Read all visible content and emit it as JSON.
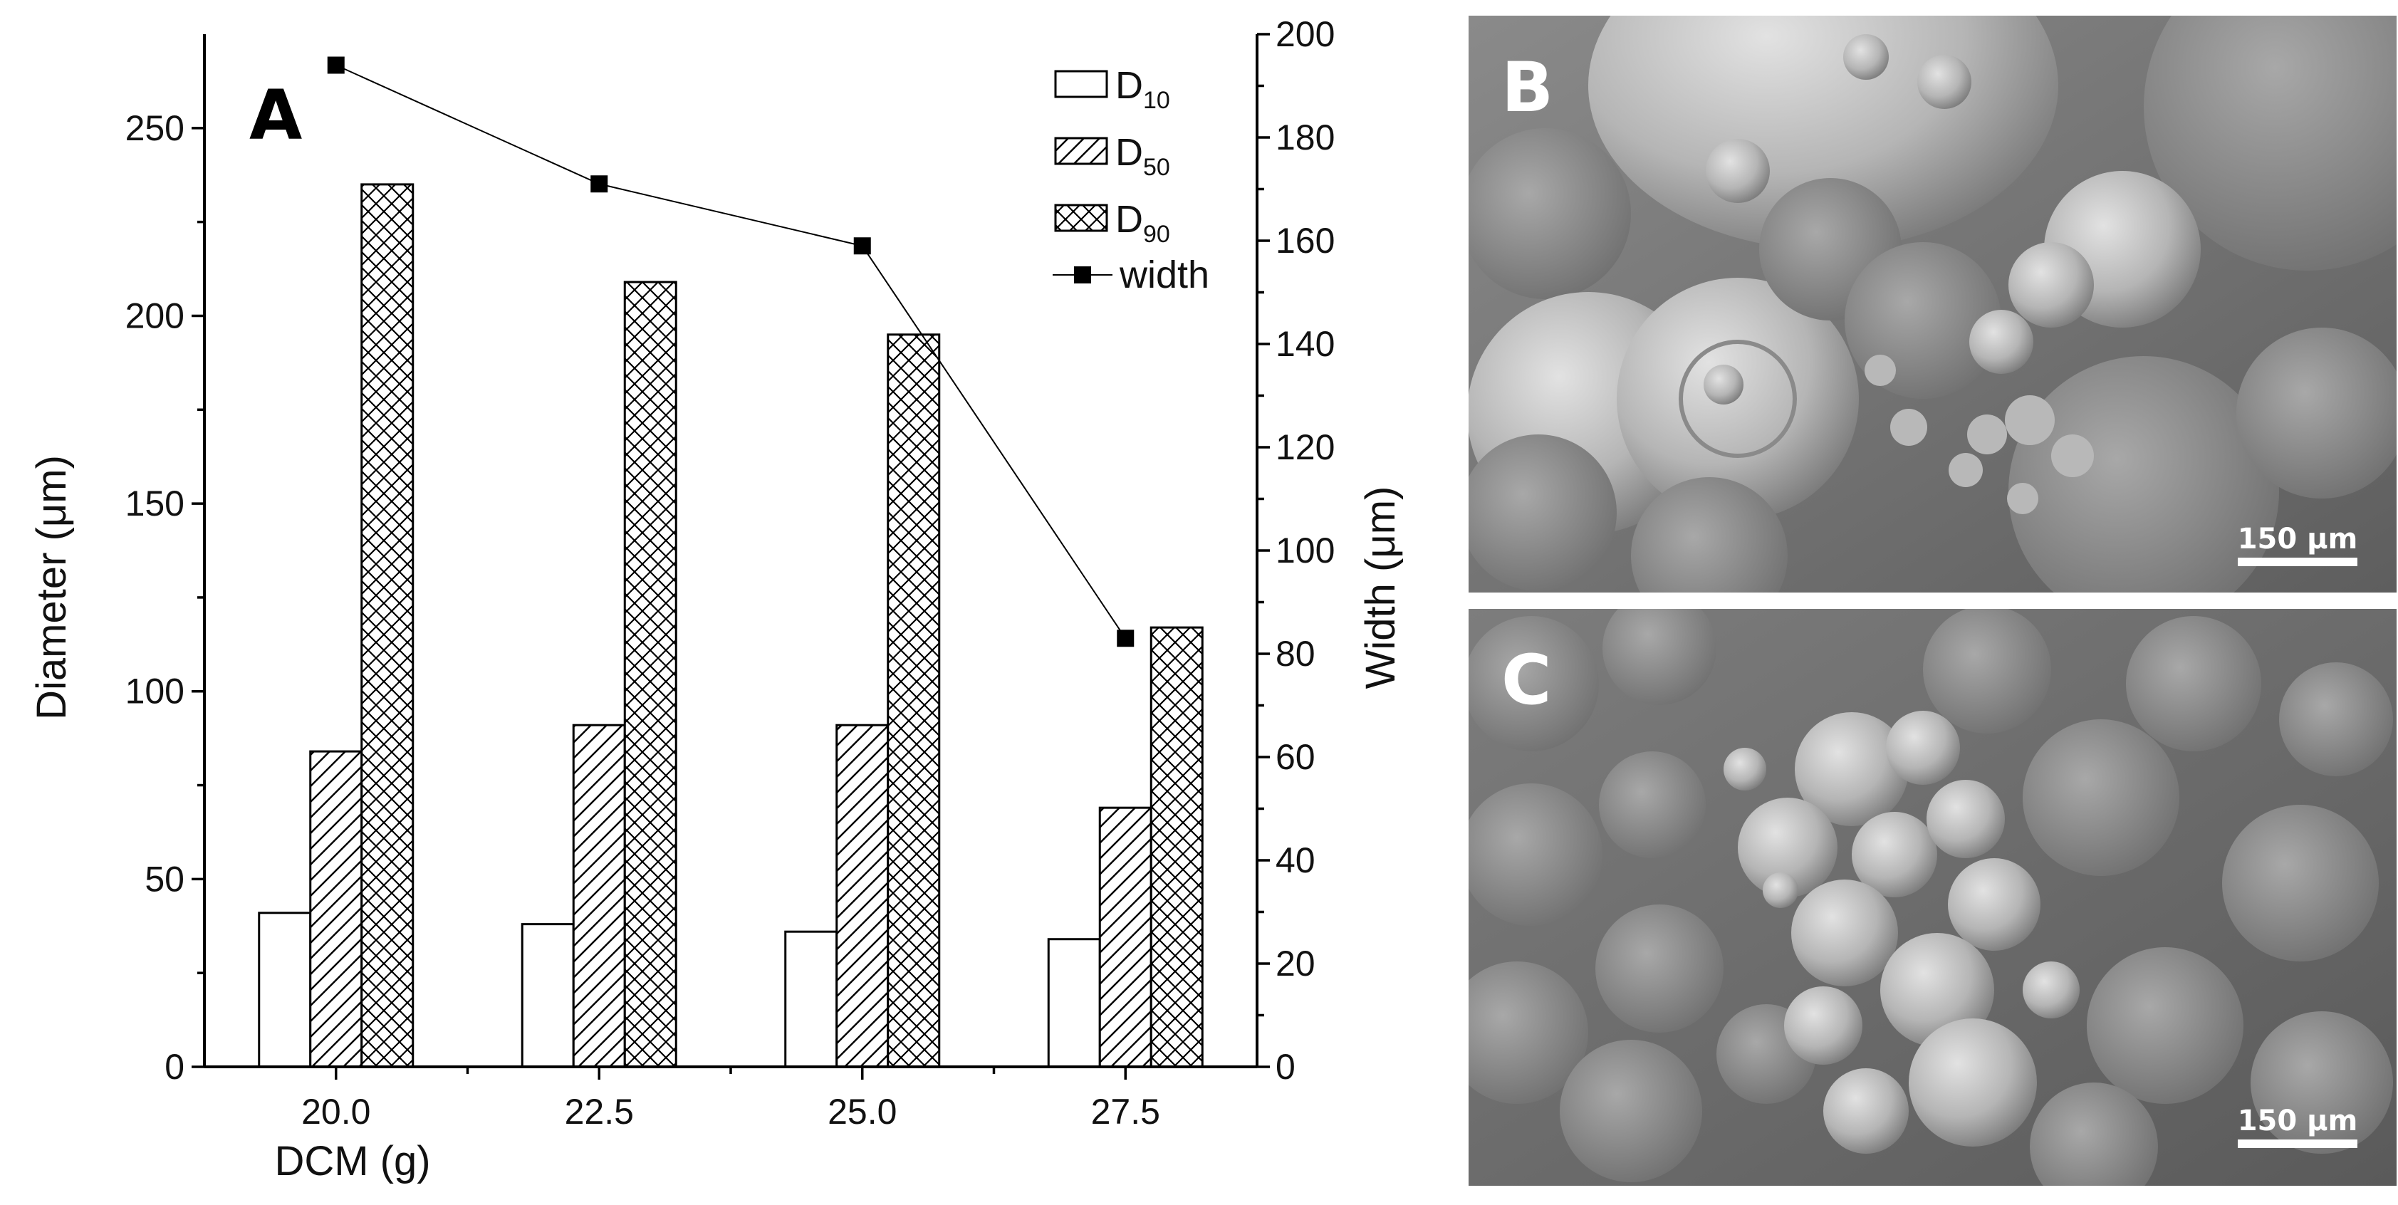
{
  "panels": {
    "a_letter": "A",
    "b_letter": "B",
    "c_letter": "C",
    "b_scalebar": "150 μm",
    "c_scalebar": "150 μm"
  },
  "chart_data": {
    "type": "bar",
    "xlabel": "DCM (g)",
    "ylabel": "Diameter (μm)",
    "y2label": "Width (μm)",
    "categories": [
      "20.0",
      "22.5",
      "25.0",
      "27.5"
    ],
    "ylim": [
      0,
      275
    ],
    "y2lim": [
      0,
      200
    ],
    "yticks": [
      0,
      50,
      100,
      150,
      200,
      250
    ],
    "y2ticks": [
      0,
      20,
      40,
      60,
      80,
      100,
      120,
      140,
      160,
      180,
      200
    ],
    "series": [
      {
        "name": "D10",
        "name_main": "D",
        "name_sub": "10",
        "pattern": "none",
        "values": [
          41,
          38,
          36,
          34
        ]
      },
      {
        "name": "D50",
        "name_main": "D",
        "name_sub": "50",
        "pattern": "hatch",
        "values": [
          84,
          91,
          91,
          69
        ]
      },
      {
        "name": "D90",
        "name_main": "D",
        "name_sub": "90",
        "pattern": "crosshatch",
        "values": [
          235,
          209,
          195,
          117
        ]
      }
    ],
    "line_series": {
      "name": "width",
      "axis": "right",
      "values": [
        194,
        171,
        159,
        83
      ]
    },
    "legend_position": "top-right",
    "grid": false
  }
}
